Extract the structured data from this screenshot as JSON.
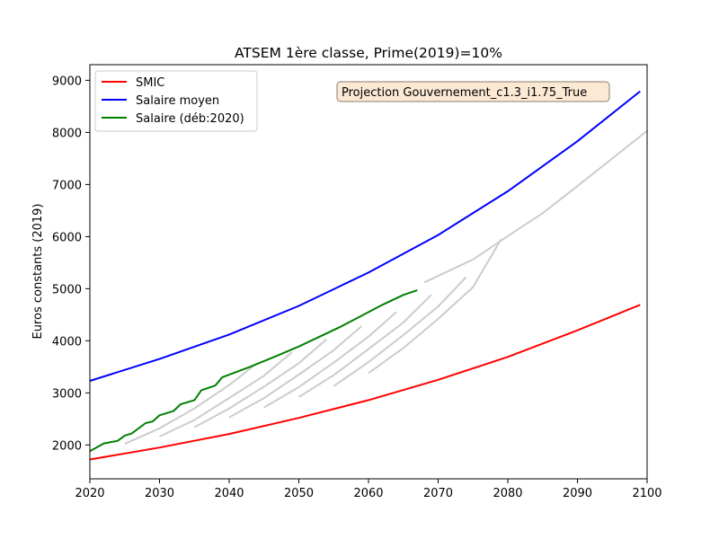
{
  "chart_data": {
    "type": "line",
    "title": "ATSEM 1ère classe, Prime(2019)=10%",
    "xlabel": "",
    "ylabel": "Euros constants (2019)",
    "xlim": [
      2020,
      2100
    ],
    "ylim": [
      1350,
      9300
    ],
    "xticks": [
      2020,
      2030,
      2040,
      2050,
      2060,
      2070,
      2080,
      2090,
      2100
    ],
    "yticks": [
      2000,
      3000,
      4000,
      5000,
      6000,
      7000,
      8000,
      9000
    ],
    "grid": false,
    "legend_position": "top-left",
    "annotation": "Projection Gouvernement_c1.3_i1.75_True",
    "colors": {
      "smic": "#ff0000",
      "salaire_moyen": "#0000ff",
      "salaire": "#008000",
      "careers": "#cccccc",
      "annotation_bg": "#fbe9d4",
      "annotation_border": "#8a7e72"
    },
    "series": [
      {
        "name": "SMIC",
        "color": "#ff0000",
        "x": [
          2020,
          2030,
          2040,
          2050,
          2060,
          2070,
          2080,
          2090,
          2099
        ],
        "y": [
          1720,
          1950,
          2210,
          2520,
          2860,
          3250,
          3690,
          4200,
          4690
        ]
      },
      {
        "name": "Salaire moyen",
        "color": "#0000ff",
        "x": [
          2020,
          2030,
          2040,
          2050,
          2060,
          2070,
          2080,
          2090,
          2099
        ],
        "y": [
          3230,
          3650,
          4120,
          4670,
          5310,
          6030,
          6870,
          7830,
          8790
        ]
      },
      {
        "name": "Salaire (déb:2020)",
        "color": "#008000",
        "x": [
          2020,
          2022,
          2024,
          2025,
          2026,
          2028,
          2029,
          2030,
          2032,
          2033,
          2035,
          2036,
          2038,
          2039,
          2043,
          2047,
          2050,
          2053,
          2056,
          2059,
          2062,
          2065,
          2067
        ],
        "y": [
          1880,
          2030,
          2080,
          2180,
          2220,
          2420,
          2450,
          2570,
          2650,
          2780,
          2860,
          3050,
          3140,
          3300,
          3500,
          3720,
          3890,
          4080,
          4270,
          4480,
          4690,
          4880,
          4970
        ]
      }
    ],
    "background_careers": [
      {
        "start": 2025,
        "x": [
          2025,
          2030,
          2035,
          2040,
          2044
        ],
        "y": [
          2020,
          2320,
          2700,
          3150,
          3570
        ]
      },
      {
        "start": 2030,
        "x": [
          2030,
          2035,
          2040,
          2045,
          2049
        ],
        "y": [
          2160,
          2480,
          2900,
          3330,
          3780
        ]
      },
      {
        "start": 2035,
        "x": [
          2035,
          2040,
          2045,
          2050,
          2054
        ],
        "y": [
          2340,
          2700,
          3120,
          3570,
          4030
        ]
      },
      {
        "start": 2040,
        "x": [
          2040,
          2045,
          2050,
          2055,
          2059
        ],
        "y": [
          2530,
          2900,
          3350,
          3820,
          4280
        ]
      },
      {
        "start": 2045,
        "x": [
          2045,
          2050,
          2055,
          2060,
          2064
        ],
        "y": [
          2720,
          3110,
          3580,
          4080,
          4550
        ]
      },
      {
        "start": 2050,
        "x": [
          2050,
          2055,
          2060,
          2065,
          2069
        ],
        "y": [
          2920,
          3340,
          3840,
          4350,
          4880
        ]
      },
      {
        "start": 2055,
        "x": [
          2055,
          2060,
          2065,
          2070,
          2074
        ],
        "y": [
          3130,
          3590,
          4110,
          4660,
          5220
        ]
      },
      {
        "start": 2060,
        "x": [
          2060,
          2065,
          2070,
          2075,
          2079
        ],
        "y": [
          3380,
          3860,
          4420,
          5030,
          5940
        ]
      },
      {
        "start": 2068,
        "x": [
          2068,
          2075,
          2080,
          2085,
          2090,
          2095,
          2100
        ],
        "y": [
          5120,
          5560,
          6010,
          6450,
          6970,
          7500,
          8030
        ]
      }
    ]
  }
}
